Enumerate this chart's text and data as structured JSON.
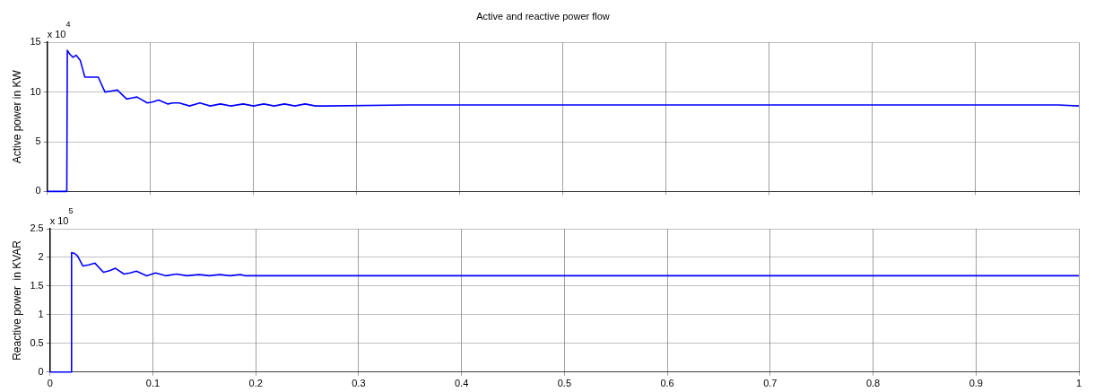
{
  "chart_data": [
    {
      "type": "line",
      "title": "Active and reactive power flow",
      "ylabel": "Active power in KW",
      "annotations": [
        "x 10$^{4}$"
      ],
      "x": [
        0,
        0.019,
        0.0195,
        0.022,
        0.025,
        0.028,
        0.032,
        0.0365,
        0.0495,
        0.056,
        0.062,
        0.068,
        0.077,
        0.082,
        0.087,
        0.097,
        0.102,
        0.108,
        0.117,
        0.122,
        0.128,
        0.138,
        0.148,
        0.158,
        0.168,
        0.178,
        0.19,
        0.2,
        0.21,
        0.22,
        0.23,
        0.24,
        0.25,
        0.26,
        0.27,
        0.35,
        0.98,
        1
      ],
      "series": [
        {
          "color": "#0000ff",
          "values": [
            0,
            0,
            14.2,
            13.8,
            13.5,
            13.7,
            13.2,
            11.5,
            11.5,
            10.0,
            10.1,
            10.2,
            9.3,
            9.4,
            9.5,
            8.9,
            9.0,
            9.2,
            8.8,
            8.9,
            8.9,
            8.6,
            8.9,
            8.6,
            8.8,
            8.6,
            8.8,
            8.6,
            8.8,
            8.6,
            8.8,
            8.6,
            8.8,
            8.6,
            8.6,
            8.7,
            8.7,
            8.6
          ]
        }
      ],
      "xlim": [
        0,
        1
      ],
      "xticks": [
        0,
        0.1,
        0.2,
        0.3,
        0.4,
        0.5,
        0.6,
        0.7,
        0.8,
        0.9,
        1
      ],
      "ylim": [
        0,
        15
      ],
      "yticks": [
        0,
        5,
        10,
        15
      ],
      "grid": true,
      "tick_labels": "y",
      "legend": false
    },
    {
      "type": "line",
      "ylabel": "Reactive power  in KVAR",
      "annotations": [
        "x 10$^{5}$"
      ],
      "x": [
        0,
        0.0205,
        0.021,
        0.024,
        0.027,
        0.032,
        0.038,
        0.0437,
        0.052,
        0.058,
        0.0636,
        0.072,
        0.078,
        0.084,
        0.094,
        0.1025,
        0.113,
        0.123,
        0.133,
        0.145,
        0.155,
        0.165,
        0.175,
        0.185,
        0.19,
        1
      ],
      "series": [
        {
          "color": "#0000ff",
          "values": [
            0,
            0,
            2.08,
            2.07,
            2.02,
            1.85,
            1.87,
            1.9,
            1.74,
            1.77,
            1.81,
            1.71,
            1.73,
            1.76,
            1.68,
            1.73,
            1.68,
            1.71,
            1.68,
            1.7,
            1.68,
            1.7,
            1.68,
            1.7,
            1.68,
            1.68
          ]
        }
      ],
      "xlim": [
        0,
        1
      ],
      "xticks": [
        0,
        0.1,
        0.2,
        0.3,
        0.4,
        0.5,
        0.6,
        0.7,
        0.8,
        0.9,
        1
      ],
      "ylim": [
        0,
        2.5
      ],
      "yticks": [
        0,
        0.5,
        1,
        1.5,
        2,
        2.5
      ],
      "grid": true,
      "legend": false
    }
  ]
}
